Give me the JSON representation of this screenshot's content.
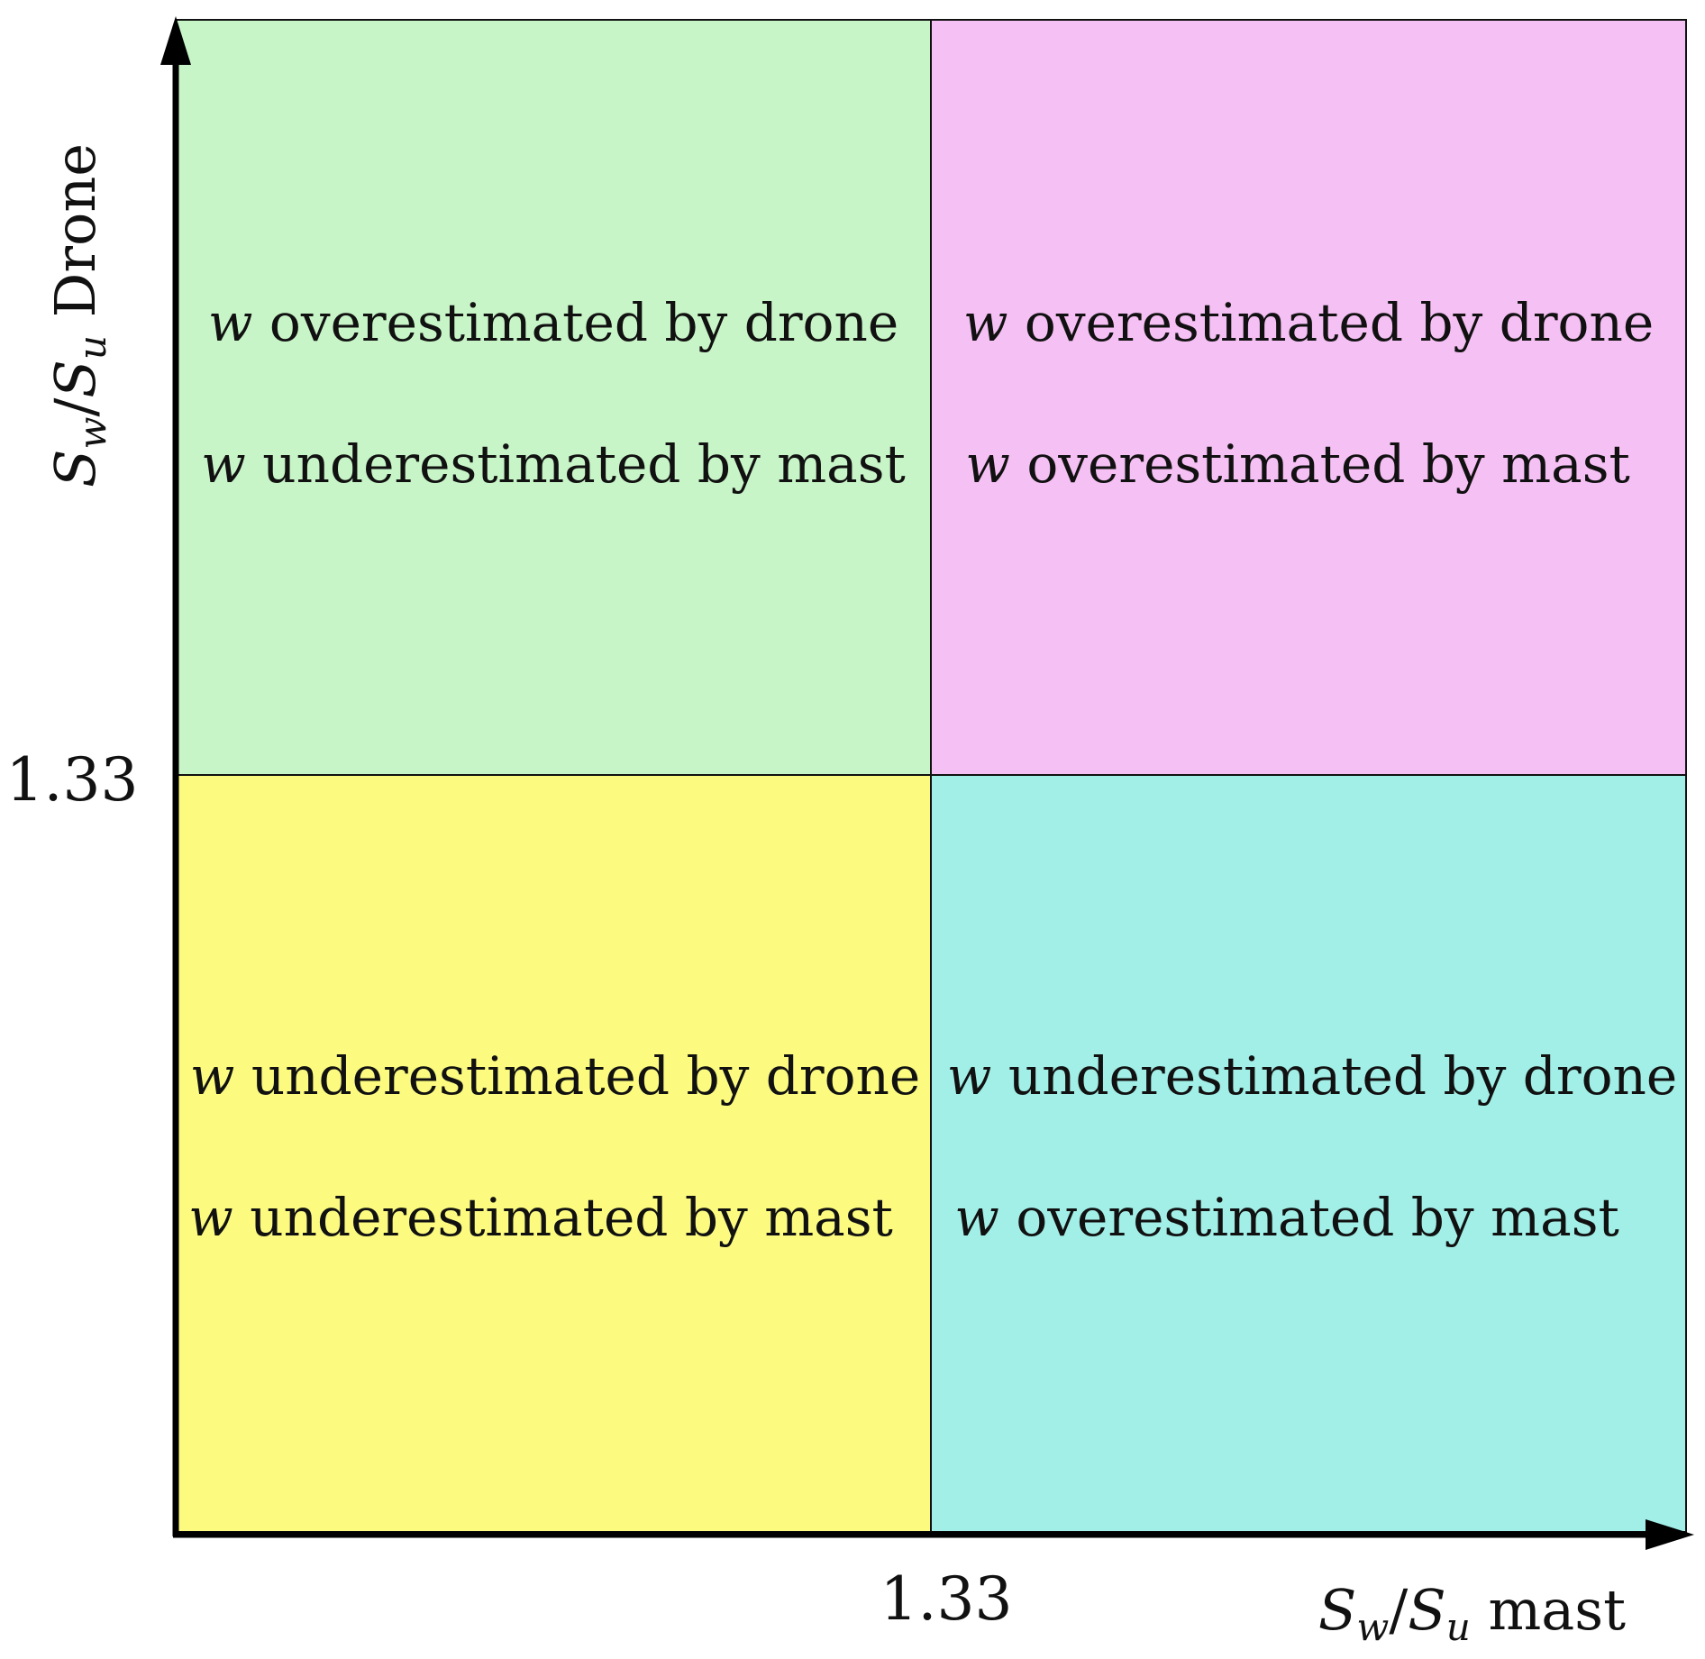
{
  "threshold": 1.33,
  "x_axis": {
    "label_symbol": "S",
    "label_sub_w": "w",
    "label_slash": "/",
    "label_sub_u": "u",
    "label_text": "mast",
    "tick_label": "1.33"
  },
  "y_axis": {
    "label_symbol": "S",
    "label_sub_w": "w",
    "label_slash": "/",
    "label_sub_u": "u",
    "label_text": "Drone",
    "tick_label": "1.33"
  },
  "quadrants": {
    "top_left": {
      "color": "#c8f5c8",
      "line1_var": "w",
      "line1_text": "overestimated by drone",
      "line2_var": "w",
      "line2_text": "underestimated by mast"
    },
    "top_right": {
      "color": "#f5c0f3",
      "line1_var": "w",
      "line1_text": "overestimated by drone",
      "line2_var": "w",
      "line2_text": "overestimated by mast"
    },
    "bottom_left": {
      "color": "#fcfb80",
      "line1_var": "w",
      "line1_text": "underestimated by drone",
      "line2_var": "w",
      "line2_text": "underestimated by mast"
    },
    "bottom_right": {
      "color": "#a2efe8",
      "line1_var": "w",
      "line1_text": "underestimated by drone",
      "line2_var": "w",
      "line2_text": "overestimated by mast"
    }
  }
}
